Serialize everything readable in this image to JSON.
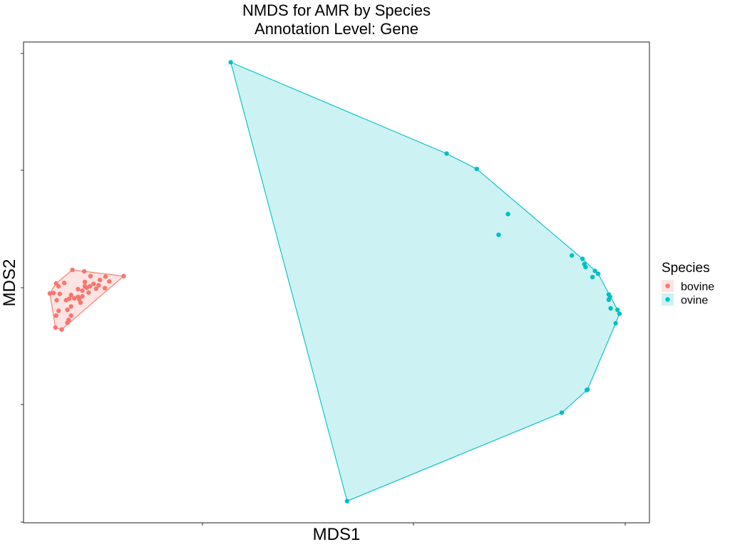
{
  "chart_data": {
    "type": "scatter",
    "title": "NMDS for AMR by Species",
    "subtitle": "Annotation Level: Gene",
    "xlabel": "MDS1",
    "ylabel": "MDS2",
    "xlim": [
      0.0,
      1.0
    ],
    "ylim": [
      0.0,
      1.0
    ],
    "grid": false,
    "hull_polygons": true,
    "legend_title": "Species",
    "legend_position": "right",
    "series": [
      {
        "name": "bovine",
        "color": "#F8766D",
        "points": [
          [
            0.16,
            0.513
          ],
          [
            0.078,
            0.526
          ],
          [
            0.107,
            0.513
          ],
          [
            0.122,
            0.505
          ],
          [
            0.137,
            0.502
          ],
          [
            0.131,
            0.512
          ],
          [
            0.098,
            0.501
          ],
          [
            0.065,
            0.499
          ],
          [
            0.052,
            0.498
          ],
          [
            0.048,
            0.478
          ],
          [
            0.042,
            0.477
          ],
          [
            0.058,
            0.476
          ],
          [
            0.076,
            0.474
          ],
          [
            0.087,
            0.486
          ],
          [
            0.094,
            0.483
          ],
          [
            0.101,
            0.489
          ],
          [
            0.104,
            0.479
          ],
          [
            0.116,
            0.487
          ],
          [
            0.13,
            0.488
          ],
          [
            0.12,
            0.494
          ],
          [
            0.098,
            0.492
          ],
          [
            0.094,
            0.471
          ],
          [
            0.089,
            0.465
          ],
          [
            0.081,
            0.467
          ],
          [
            0.073,
            0.466
          ],
          [
            0.068,
            0.463
          ],
          [
            0.076,
            0.45
          ],
          [
            0.07,
            0.443
          ],
          [
            0.076,
            0.431
          ],
          [
            0.056,
            0.441
          ],
          [
            0.052,
            0.431
          ],
          [
            0.072,
            0.422
          ],
          [
            0.07,
            0.416
          ],
          [
            0.051,
            0.406
          ],
          [
            0.061,
            0.402
          ],
          [
            0.053,
            0.463
          ],
          [
            0.056,
            0.492
          ],
          [
            0.087,
            0.47
          ],
          [
            0.091,
            0.458
          ],
          [
            0.112,
            0.497
          ],
          [
            0.097,
            0.523
          ],
          [
            0.106,
            0.492
          ]
        ]
      },
      {
        "name": "ovine",
        "color": "#00BFC4",
        "points": [
          [
            0.331,
            0.958
          ],
          [
            0.676,
            0.768
          ],
          [
            0.724,
            0.736
          ],
          [
            0.774,
            0.642
          ],
          [
            0.759,
            0.599
          ],
          [
            0.876,
            0.556
          ],
          [
            0.893,
            0.549
          ],
          [
            0.896,
            0.538
          ],
          [
            0.898,
            0.532
          ],
          [
            0.913,
            0.524
          ],
          [
            0.918,
            0.518
          ],
          [
            0.909,
            0.511
          ],
          [
            0.935,
            0.475
          ],
          [
            0.937,
            0.47
          ],
          [
            0.935,
            0.464
          ],
          [
            0.938,
            0.446
          ],
          [
            0.949,
            0.443
          ],
          [
            0.952,
            0.435
          ],
          [
            0.946,
            0.415
          ],
          [
            0.901,
            0.277
          ],
          [
            0.9,
            0.276
          ],
          [
            0.86,
            0.229
          ],
          [
            0.517,
            0.045
          ]
        ]
      }
    ]
  }
}
